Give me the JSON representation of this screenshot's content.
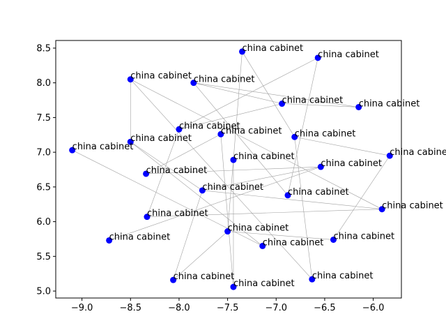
{
  "chart_data": {
    "type": "scatter",
    "title": "",
    "xlabel": "",
    "ylabel": "",
    "xlim": [
      -9.27,
      -5.71
    ],
    "ylim": [
      4.9,
      8.61
    ],
    "xticks": [
      -9.0,
      -8.5,
      -8.0,
      -7.5,
      -7.0,
      -6.5,
      -6.0
    ],
    "yticks": [
      5.0,
      5.5,
      6.0,
      6.5,
      7.0,
      7.5,
      8.0,
      8.5
    ],
    "xtick_labels": [
      "−9.0",
      "−8.5",
      "−8.0",
      "−7.5",
      "−7.0",
      "−6.5",
      "−6.0"
    ],
    "ytick_labels": [
      "5.0",
      "5.5",
      "6.0",
      "6.5",
      "7.0",
      "7.5",
      "8.0",
      "8.5"
    ],
    "grid": false,
    "marker_color": "#0000ff",
    "edge_color": "#a0a0a0",
    "points": [
      {
        "x": -7.35,
        "y": 8.45,
        "label": "china cabinet"
      },
      {
        "x": -6.57,
        "y": 8.36,
        "label": "china cabinet"
      },
      {
        "x": -8.5,
        "y": 8.05,
        "label": "china cabinet"
      },
      {
        "x": -7.85,
        "y": 8.0,
        "label": "china cabinet"
      },
      {
        "x": -6.94,
        "y": 7.7,
        "label": "china cabinet"
      },
      {
        "x": -6.15,
        "y": 7.65,
        "label": "china cabinet"
      },
      {
        "x": -8.0,
        "y": 7.33,
        "label": "china cabinet"
      },
      {
        "x": -7.57,
        "y": 7.26,
        "label": "china cabinet"
      },
      {
        "x": -6.81,
        "y": 7.22,
        "label": "china cabinet"
      },
      {
        "x": -8.5,
        "y": 7.15,
        "label": "china cabinet"
      },
      {
        "x": -9.1,
        "y": 7.03,
        "label": "china cabinet"
      },
      {
        "x": -5.83,
        "y": 6.95,
        "label": "china cabinet"
      },
      {
        "x": -7.44,
        "y": 6.89,
        "label": "china cabinet"
      },
      {
        "x": -6.54,
        "y": 6.79,
        "label": "china cabinet"
      },
      {
        "x": -8.34,
        "y": 6.69,
        "label": "china cabinet"
      },
      {
        "x": -7.76,
        "y": 6.45,
        "label": "china cabinet"
      },
      {
        "x": -6.88,
        "y": 6.38,
        "label": "china cabinet"
      },
      {
        "x": -5.91,
        "y": 6.18,
        "label": "china cabinet"
      },
      {
        "x": -8.33,
        "y": 6.07,
        "label": "china cabinet"
      },
      {
        "x": -7.5,
        "y": 5.86,
        "label": "china cabinet"
      },
      {
        "x": -8.72,
        "y": 5.73,
        "label": "china cabinet"
      },
      {
        "x": -6.41,
        "y": 5.74,
        "label": "china cabinet"
      },
      {
        "x": -7.14,
        "y": 5.65,
        "label": "china cabinet"
      },
      {
        "x": -8.06,
        "y": 5.16,
        "label": "china cabinet"
      },
      {
        "x": -6.63,
        "y": 5.17,
        "label": "china cabinet"
      },
      {
        "x": -7.44,
        "y": 5.06,
        "label": "china cabinet"
      }
    ],
    "edges": [
      [
        0,
        19
      ],
      [
        0,
        8
      ],
      [
        1,
        6
      ],
      [
        1,
        16
      ],
      [
        2,
        9
      ],
      [
        2,
        17
      ],
      [
        3,
        4
      ],
      [
        3,
        5
      ],
      [
        4,
        6
      ],
      [
        5,
        4
      ],
      [
        6,
        18
      ],
      [
        7,
        14
      ],
      [
        7,
        25
      ],
      [
        8,
        24
      ],
      [
        9,
        15
      ],
      [
        10,
        22
      ],
      [
        11,
        21
      ],
      [
        11,
        8
      ],
      [
        12,
        25
      ],
      [
        13,
        15
      ],
      [
        14,
        13
      ],
      [
        15,
        17
      ],
      [
        16,
        3
      ],
      [
        18,
        17
      ],
      [
        19,
        23
      ],
      [
        20,
        13
      ],
      [
        22,
        9
      ],
      [
        23,
        15
      ],
      [
        24,
        2
      ],
      [
        19,
        21
      ]
    ]
  }
}
